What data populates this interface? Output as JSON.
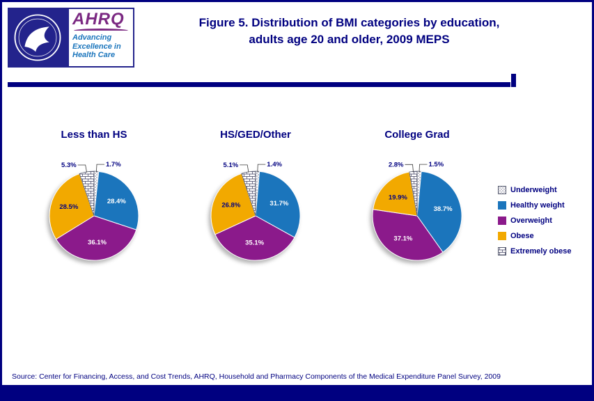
{
  "page": {
    "border_color": "#000080",
    "background": "#FFFFFF",
    "accent_navy": "#000080"
  },
  "header": {
    "title_lines": [
      "Figure 5. Distribution of BMI categories by education,",
      "adults age 20 and older, 2009 MEPS"
    ],
    "title_color": "#000080",
    "logo": {
      "ahrq_text": "AHRQ",
      "tagline_lines": [
        "Advancing",
        "Excellence in",
        "Health Care"
      ],
      "ahrq_color": "#7B2982",
      "tagline_color": "#1B75BC"
    }
  },
  "chart_data": {
    "type": "pie",
    "title": "Figure 5. Distribution of BMI categories by education, adults age 20 and older, 2009 MEPS",
    "categories": [
      "Underweight",
      "Healthy weight",
      "Overweight",
      "Obese",
      "Extremely obese"
    ],
    "slice_styles": [
      {
        "fill": "pattern:dots",
        "label_color": "#000080"
      },
      {
        "fill": "#1B75BC",
        "label_color": "#FFFFFF"
      },
      {
        "fill": "#8B1A8B",
        "label_color": "#FFFFFF"
      },
      {
        "fill": "#F2A900",
        "label_color": "#000080"
      },
      {
        "fill": "pattern:brick",
        "label_color": "#000080"
      }
    ],
    "pies": [
      {
        "label": "Less than HS",
        "values": [
          1.7,
          28.4,
          36.1,
          28.5,
          5.3
        ]
      },
      {
        "label": "HS/GED/Other",
        "values": [
          1.4,
          31.7,
          35.1,
          26.8,
          5.1
        ]
      },
      {
        "label": "College Grad",
        "values": [
          1.5,
          38.7,
          37.1,
          19.9,
          2.8
        ]
      }
    ],
    "legend_position": "right",
    "start_angle_deg": 0,
    "direction": "clockwise"
  },
  "footer": {
    "source": "Source: Center for Financing, Access, and Cost Trends, AHRQ, Household and Pharmacy Components of the Medical Expenditure Panel Survey, 2009"
  }
}
